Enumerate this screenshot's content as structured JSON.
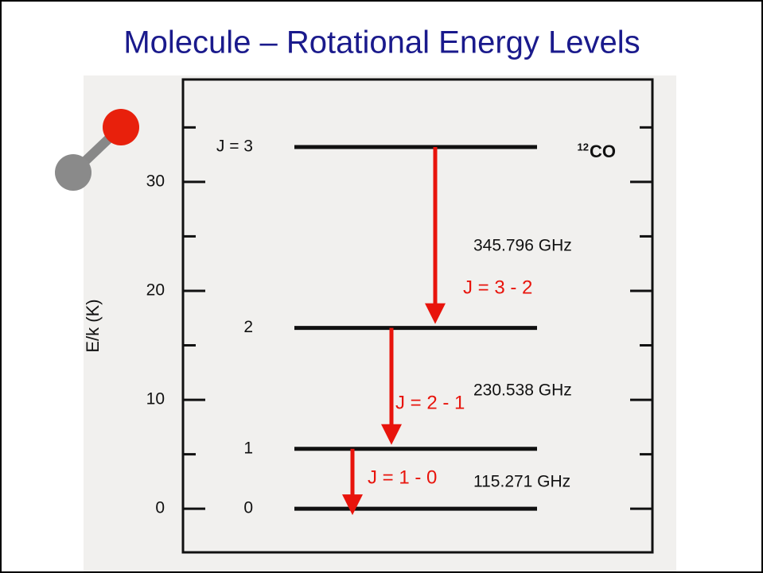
{
  "title": "Molecule – Rotational Energy Levels",
  "diagram": {
    "ylabel": "E/k (K)",
    "ylim": [
      -4,
      39.4
    ],
    "yticks": [
      0,
      10,
      20,
      30
    ],
    "minor_yticks": [
      5,
      15,
      25,
      35
    ],
    "molecule": {
      "mass": "12",
      "name": "CO"
    },
    "levels": [
      {
        "label": "0",
        "energy": 0
      },
      {
        "label": "1",
        "energy": 5.5
      },
      {
        "label": "2",
        "energy": 16.6
      },
      {
        "label": "J = 3",
        "energy": 33.2
      }
    ],
    "transitions": [
      {
        "label": "J = 1 - 0",
        "frequency": "115.271 GHz"
      },
      {
        "label": "J = 2 - 1",
        "frequency": "230.538 GHz"
      },
      {
        "label": "J = 3 - 2",
        "frequency": "345.796 GHz"
      }
    ]
  }
}
